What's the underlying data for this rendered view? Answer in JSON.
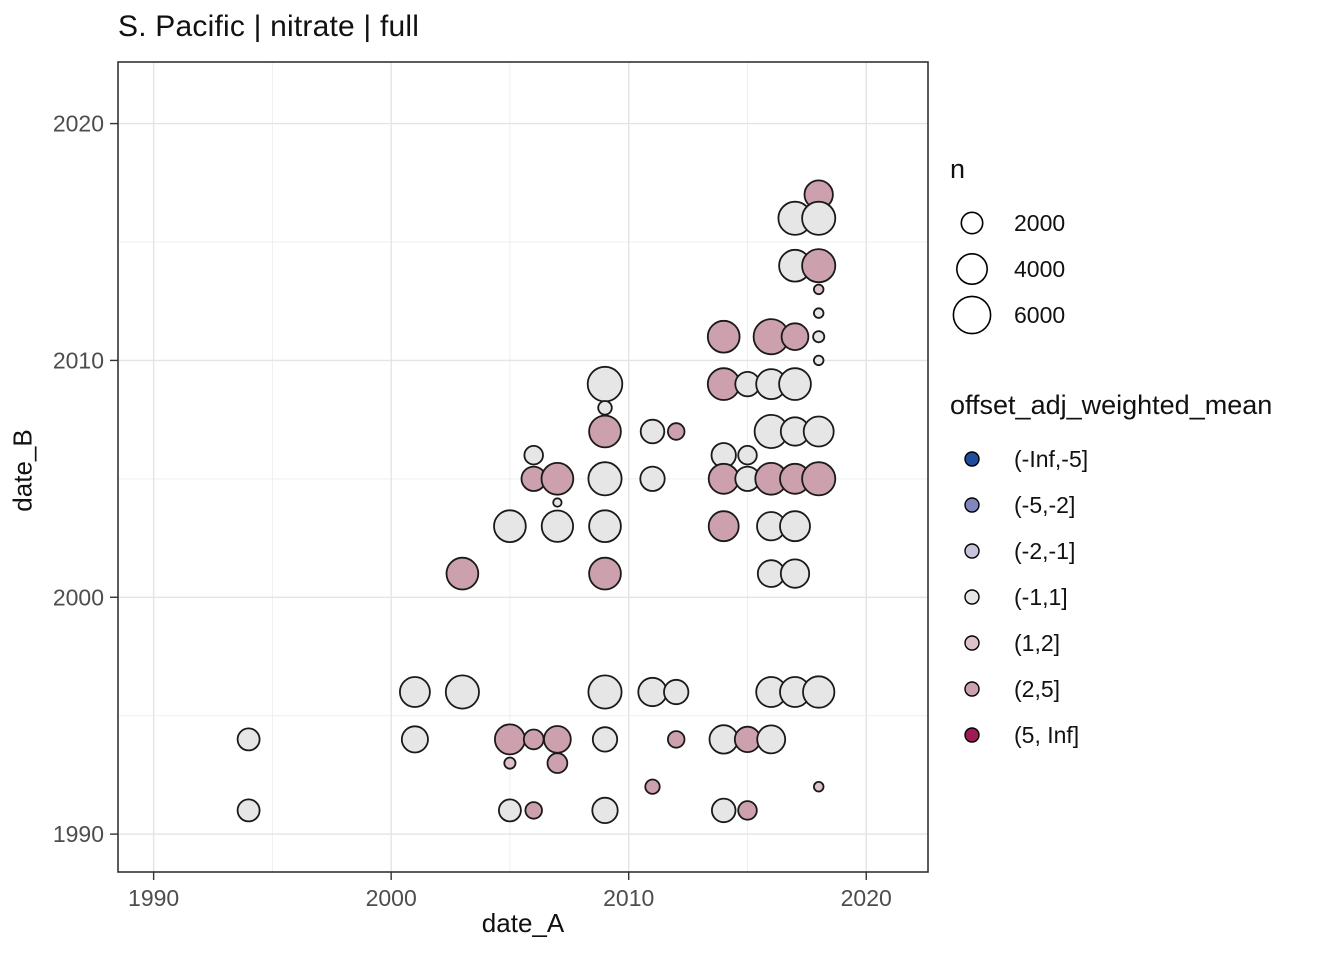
{
  "chart_data": {
    "type": "scatter",
    "title": "S. Pacific | nitrate | full",
    "xlabel": "date_A",
    "ylabel": "date_B",
    "xlim": [
      1988.5,
      2022.6
    ],
    "ylim": [
      1988.4,
      2022.6
    ],
    "x_ticks": [
      1990,
      2000,
      2010,
      2020
    ],
    "y_ticks": [
      1990,
      2000,
      2010,
      2020
    ],
    "x_minor": [
      1995,
      2005,
      2015
    ],
    "y_minor": [
      1995,
      2005,
      2015
    ],
    "grid": true,
    "legend_position": "right",
    "size_legend": {
      "title": "n",
      "values": [
        2000,
        4000,
        6000
      ]
    },
    "color_legend": {
      "title": "offset_adj_weighted_mean",
      "bins": [
        {
          "label": "(-Inf,-5]",
          "color": "#1f4c9c"
        },
        {
          "label": "(-5,-2]",
          "color": "#8186bf"
        },
        {
          "label": "(-2,-1]",
          "color": "#c6c4db"
        },
        {
          "label": "(-1,1]",
          "color": "#e7e6e7"
        },
        {
          "label": "(1,2]",
          "color": "#dec2cb"
        },
        {
          "label": "(2,5]",
          "color": "#cda0ae"
        },
        {
          "label": "(5, Inf]",
          "color": "#9e1b55"
        }
      ]
    },
    "points": [
      {
        "x": 1994,
        "y": 1994,
        "n": 2100,
        "bin": "(-1,1]"
      },
      {
        "x": 1994,
        "y": 1991,
        "n": 2100,
        "bin": "(-1,1]"
      },
      {
        "x": 2001,
        "y": 1996,
        "n": 3900,
        "bin": "(-1,1]"
      },
      {
        "x": 2001,
        "y": 1994,
        "n": 3000,
        "bin": "(-1,1]"
      },
      {
        "x": 2003,
        "y": 2001,
        "n": 4400,
        "bin": "(2,5]"
      },
      {
        "x": 2003,
        "y": 1996,
        "n": 4800,
        "bin": "(-1,1]"
      },
      {
        "x": 2005,
        "y": 2003,
        "n": 4400,
        "bin": "(-1,1]"
      },
      {
        "x": 2005,
        "y": 1994,
        "n": 3900,
        "bin": "(2,5]"
      },
      {
        "x": 2005,
        "y": 1993,
        "n": 550,
        "bin": "(1,2]"
      },
      {
        "x": 2005,
        "y": 1991,
        "n": 2100,
        "bin": "(-1,1]"
      },
      {
        "x": 2006,
        "y": 2006,
        "n": 1500,
        "bin": "(-1,1]"
      },
      {
        "x": 2006,
        "y": 2005,
        "n": 2600,
        "bin": "(2,5]"
      },
      {
        "x": 2006,
        "y": 1994,
        "n": 1700,
        "bin": "(2,5]"
      },
      {
        "x": 2006,
        "y": 1991,
        "n": 1200,
        "bin": "(2,5]"
      },
      {
        "x": 2007,
        "y": 2005,
        "n": 4400,
        "bin": "(2,5]"
      },
      {
        "x": 2007,
        "y": 2004,
        "n": 300,
        "bin": "(-1,1]"
      },
      {
        "x": 2007,
        "y": 2003,
        "n": 4300,
        "bin": "(-1,1]"
      },
      {
        "x": 2007,
        "y": 1994,
        "n": 3100,
        "bin": "(2,5]"
      },
      {
        "x": 2007,
        "y": 1993,
        "n": 1700,
        "bin": "(2,5]"
      },
      {
        "x": 2009,
        "y": 2009,
        "n": 5200,
        "bin": "(-1,1]"
      },
      {
        "x": 2009,
        "y": 2008,
        "n": 800,
        "bin": "(-1,1]"
      },
      {
        "x": 2009,
        "y": 2007,
        "n": 4400,
        "bin": "(2,5]"
      },
      {
        "x": 2009,
        "y": 2005,
        "n": 4800,
        "bin": "(-1,1]"
      },
      {
        "x": 2009,
        "y": 2003,
        "n": 4400,
        "bin": "(-1,1]"
      },
      {
        "x": 2009,
        "y": 2001,
        "n": 4400,
        "bin": "(2,5]"
      },
      {
        "x": 2009,
        "y": 1996,
        "n": 4800,
        "bin": "(-1,1]"
      },
      {
        "x": 2009,
        "y": 1994,
        "n": 2600,
        "bin": "(-1,1]"
      },
      {
        "x": 2009,
        "y": 1991,
        "n": 2800,
        "bin": "(-1,1]"
      },
      {
        "x": 2011,
        "y": 2007,
        "n": 2400,
        "bin": "(-1,1]"
      },
      {
        "x": 2011,
        "y": 2005,
        "n": 2600,
        "bin": "(-1,1]"
      },
      {
        "x": 2011,
        "y": 1996,
        "n": 3500,
        "bin": "(-1,1]"
      },
      {
        "x": 2011,
        "y": 1992,
        "n": 900,
        "bin": "(2,5]"
      },
      {
        "x": 2012,
        "y": 2007,
        "n": 1200,
        "bin": "(2,5]"
      },
      {
        "x": 2012,
        "y": 1996,
        "n": 2600,
        "bin": "(-1,1]"
      },
      {
        "x": 2012,
        "y": 1994,
        "n": 1200,
        "bin": "(2,5]"
      },
      {
        "x": 2014,
        "y": 2011,
        "n": 4400,
        "bin": "(2,5]"
      },
      {
        "x": 2014,
        "y": 2009,
        "n": 4400,
        "bin": "(2,5]"
      },
      {
        "x": 2014,
        "y": 2006,
        "n": 2600,
        "bin": "(-1,1]"
      },
      {
        "x": 2014,
        "y": 2005,
        "n": 3900,
        "bin": "(2,5]"
      },
      {
        "x": 2014,
        "y": 2003,
        "n": 3900,
        "bin": "(2,5]"
      },
      {
        "x": 2014,
        "y": 1994,
        "n": 3500,
        "bin": "(-1,1]"
      },
      {
        "x": 2014,
        "y": 1991,
        "n": 2400,
        "bin": "(-1,1]"
      },
      {
        "x": 2015,
        "y": 2009,
        "n": 2600,
        "bin": "(-1,1]"
      },
      {
        "x": 2015,
        "y": 2006,
        "n": 1500,
        "bin": "(-1,1]"
      },
      {
        "x": 2015,
        "y": 2005,
        "n": 2600,
        "bin": "(-1,1]"
      },
      {
        "x": 2015,
        "y": 1994,
        "n": 2800,
        "bin": "(2,5]"
      },
      {
        "x": 2015,
        "y": 1991,
        "n": 1500,
        "bin": "(2,5]"
      },
      {
        "x": 2016,
        "y": 2011,
        "n": 5400,
        "bin": "(2,5]"
      },
      {
        "x": 2016,
        "y": 2009,
        "n": 3900,
        "bin": "(-1,1]"
      },
      {
        "x": 2016,
        "y": 2007,
        "n": 4800,
        "bin": "(-1,1]"
      },
      {
        "x": 2016,
        "y": 2005,
        "n": 4400,
        "bin": "(2,5]"
      },
      {
        "x": 2016,
        "y": 2003,
        "n": 3500,
        "bin": "(-1,1]"
      },
      {
        "x": 2016,
        "y": 2001,
        "n": 3100,
        "bin": "(-1,1]"
      },
      {
        "x": 2016,
        "y": 1996,
        "n": 3900,
        "bin": "(-1,1]"
      },
      {
        "x": 2016,
        "y": 1994,
        "n": 3400,
        "bin": "(-1,1]"
      },
      {
        "x": 2017,
        "y": 2016,
        "n": 4800,
        "bin": "(-1,1]"
      },
      {
        "x": 2017,
        "y": 2014,
        "n": 4400,
        "bin": "(-1,1]"
      },
      {
        "x": 2017,
        "y": 2011,
        "n": 3100,
        "bin": "(2,5]"
      },
      {
        "x": 2017,
        "y": 2009,
        "n": 4400,
        "bin": "(-1,1]"
      },
      {
        "x": 2017,
        "y": 2007,
        "n": 3500,
        "bin": "(-1,1]"
      },
      {
        "x": 2017,
        "y": 2005,
        "n": 3900,
        "bin": "(2,5]"
      },
      {
        "x": 2017,
        "y": 2003,
        "n": 3900,
        "bin": "(-1,1]"
      },
      {
        "x": 2017,
        "y": 2001,
        "n": 3500,
        "bin": "(-1,1]"
      },
      {
        "x": 2017,
        "y": 1996,
        "n": 3900,
        "bin": "(-1,1]"
      },
      {
        "x": 2018,
        "y": 2017,
        "n": 3500,
        "bin": "(2,5]"
      },
      {
        "x": 2018,
        "y": 2016,
        "n": 4800,
        "bin": "(-1,1]"
      },
      {
        "x": 2018,
        "y": 2014,
        "n": 4800,
        "bin": "(2,5]"
      },
      {
        "x": 2018,
        "y": 2013,
        "n": 400,
        "bin": "(1,2]"
      },
      {
        "x": 2018,
        "y": 2012,
        "n": 400,
        "bin": "(-1,1]"
      },
      {
        "x": 2018,
        "y": 2011,
        "n": 550,
        "bin": "(-1,1]"
      },
      {
        "x": 2018,
        "y": 2010,
        "n": 400,
        "bin": "(-1,1]"
      },
      {
        "x": 2018,
        "y": 2007,
        "n": 3900,
        "bin": "(-1,1]"
      },
      {
        "x": 2018,
        "y": 2005,
        "n": 4800,
        "bin": "(2,5]"
      },
      {
        "x": 2018,
        "y": 1996,
        "n": 4300,
        "bin": "(-1,1]"
      },
      {
        "x": 2018,
        "y": 1992,
        "n": 400,
        "bin": "(1,2]"
      }
    ],
    "style": {
      "grid_major_color": "#e4e4e4",
      "grid_minor_color": "#efefef",
      "panel_border_color": "#333333",
      "point_stroke_color": "#1a1a1a",
      "tick_label_color": "#4d4d4d"
    }
  }
}
